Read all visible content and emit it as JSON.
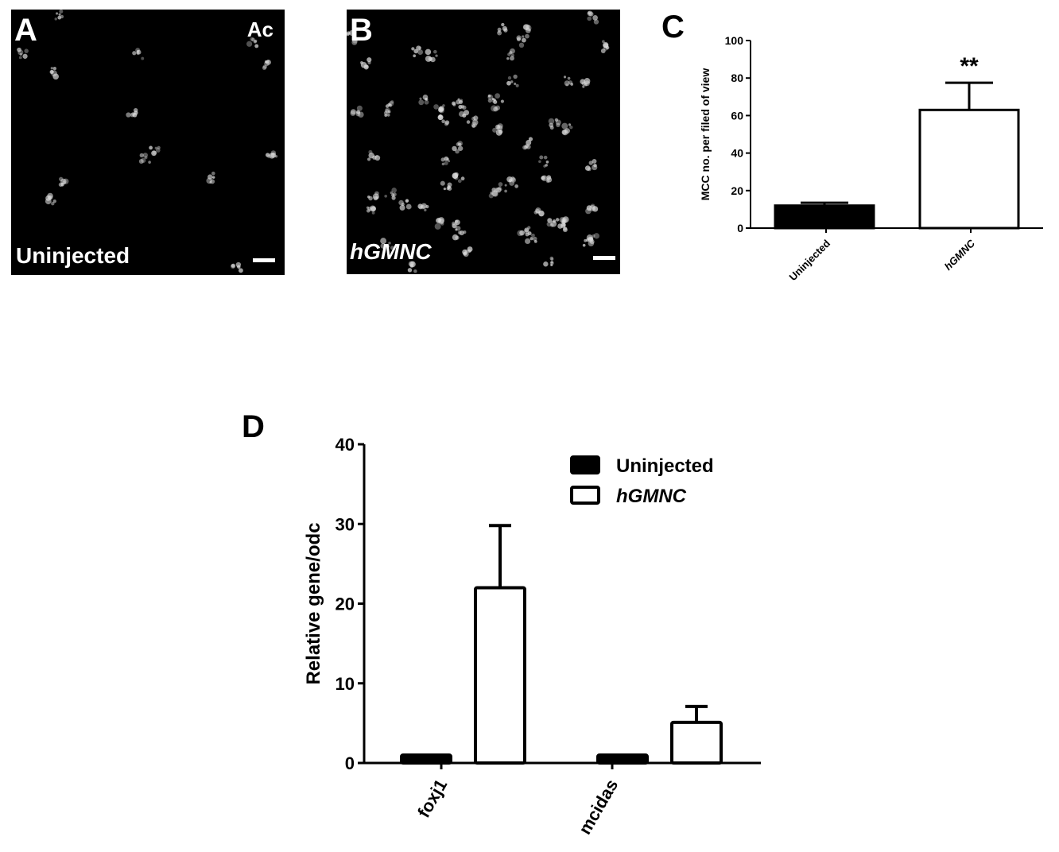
{
  "panels": {
    "a": {
      "letter": "A",
      "stain": "Ac",
      "condition": "Uninjected"
    },
    "b": {
      "letter": "B",
      "condition": "hGMNC"
    },
    "c": {
      "letter": "C"
    },
    "d": {
      "letter": "D"
    }
  },
  "chart_data": [
    {
      "type": "bar",
      "panel": "C",
      "ylabel": "MCC no. per filed of view",
      "xlabel": "",
      "categories": [
        "Uninjected",
        "hGMNC"
      ],
      "values": [
        12,
        63
      ],
      "errors": [
        1.5,
        14.5
      ],
      "fills": [
        "#000000",
        "#ffffff"
      ],
      "ylim": [
        0,
        100
      ],
      "yticks": [
        0,
        20,
        40,
        60,
        80,
        100
      ],
      "annotations": [
        {
          "category": "hGMNC",
          "text": "**"
        }
      ],
      "grid": false
    },
    {
      "type": "bar",
      "panel": "D",
      "ylabel": "Relative gene/odc",
      "xlabel": "",
      "categories": [
        "foxj1",
        "mcidas"
      ],
      "series": [
        {
          "name": "Uninjected",
          "values": [
            1,
            1
          ],
          "errors": [
            0,
            0
          ],
          "fill": "#000000"
        },
        {
          "name": "hGMNC",
          "values": [
            22,
            5.1
          ],
          "errors": [
            7.8,
            2.0
          ],
          "fill": "#ffffff"
        }
      ],
      "ylim": [
        0,
        40
      ],
      "yticks": [
        0,
        10,
        20,
        30,
        40
      ],
      "legend": "top-right",
      "grid": false
    }
  ]
}
